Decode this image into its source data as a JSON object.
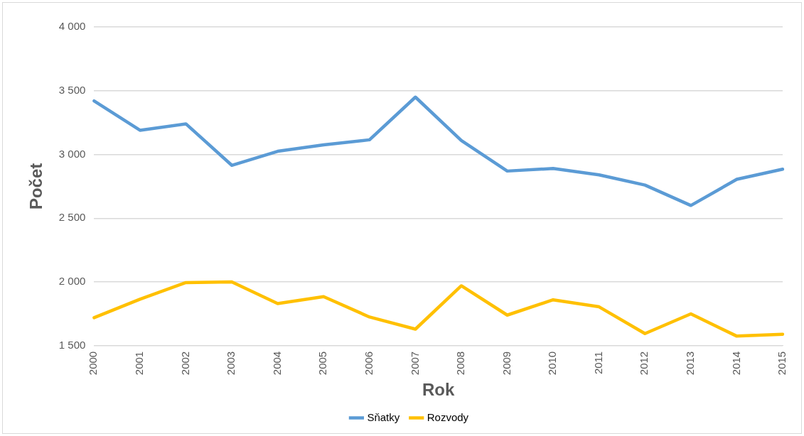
{
  "chart_data": {
    "type": "line",
    "xlabel": "Rok",
    "ylabel": "Počet",
    "categories": [
      "2000",
      "2001",
      "2002",
      "2003",
      "2004",
      "2005",
      "2006",
      "2007",
      "2008",
      "2009",
      "2010",
      "2011",
      "2012",
      "2013",
      "2014",
      "2015"
    ],
    "series": [
      {
        "name": "Sňatky",
        "color": "#5b9bd5",
        "values": [
          3420,
          3190,
          3240,
          2915,
          3025,
          3075,
          3115,
          3450,
          3110,
          2870,
          2890,
          2840,
          2760,
          2600,
          2805,
          2885
        ]
      },
      {
        "name": "Rozvody",
        "color": "#ffc000",
        "values": [
          1720,
          1865,
          1995,
          2000,
          1830,
          1885,
          1725,
          1630,
          1970,
          1740,
          1860,
          1805,
          1595,
          1750,
          1575,
          1590
        ]
      }
    ],
    "ylim": [
      1500,
      4000
    ],
    "yticks": [
      {
        "value": 1500,
        "label": "1 500"
      },
      {
        "value": 2000,
        "label": "2 000"
      },
      {
        "value": 2500,
        "label": "2 500"
      },
      {
        "value": 3000,
        "label": "3 000"
      },
      {
        "value": 3500,
        "label": "3 500"
      },
      {
        "value": 4000,
        "label": "4 000"
      }
    ],
    "grid": "y",
    "legend": "bottom",
    "marker": "none",
    "line_style": "solid"
  }
}
